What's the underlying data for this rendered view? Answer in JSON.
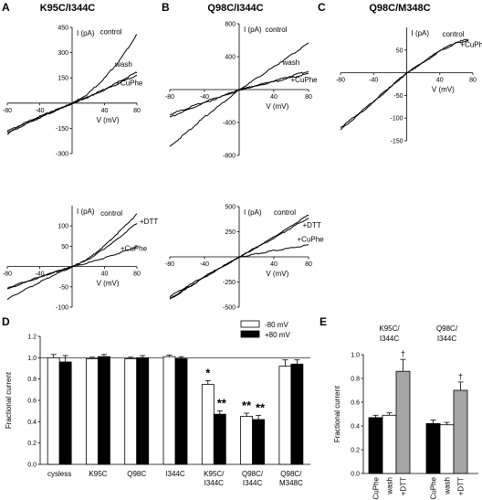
{
  "chart_data": [
    {
      "panel": "A",
      "title": "K95C/I344C",
      "type": "line",
      "xlabel": "V (mV)",
      "ylabel": "I (pA)",
      "xlim": [
        -80,
        80
      ],
      "ylim": [
        -300,
        450
      ],
      "xticks": [
        -80,
        -40,
        40,
        80
      ],
      "yticks": [
        -300,
        -150,
        150,
        300,
        450
      ],
      "series": [
        {
          "name": "control",
          "x": [
            -80,
            -60,
            -40,
            -20,
            0,
            20,
            40,
            60,
            80
          ],
          "y": [
            -165,
            -120,
            -78,
            -38,
            0,
            60,
            150,
            265,
            410
          ]
        },
        {
          "name": "wash",
          "x": [
            -80,
            -60,
            -40,
            -20,
            0,
            20,
            40,
            60,
            80
          ],
          "y": [
            -172,
            -125,
            -80,
            -40,
            0,
            40,
            85,
            135,
            185
          ]
        },
        {
          "name": "+CuPhe",
          "x": [
            -80,
            -60,
            -40,
            -20,
            0,
            20,
            40,
            60,
            80
          ],
          "y": [
            -180,
            -130,
            -84,
            -42,
            0,
            38,
            80,
            125,
            170
          ]
        }
      ]
    },
    {
      "panel": "B",
      "title": "Q98C/I344C",
      "type": "line",
      "xlabel": "V (mV)",
      "ylabel": "I (pA)",
      "xlim": [
        -80,
        80
      ],
      "ylim": [
        -800,
        800
      ],
      "xticks": [
        -80,
        -40,
        40,
        80
      ],
      "yticks": [
        -800,
        -400,
        400,
        800
      ],
      "series": [
        {
          "name": "control",
          "x": [
            -80,
            -40,
            0,
            40,
            80
          ],
          "y": [
            -690,
            -330,
            0,
            280,
            570
          ]
        },
        {
          "name": "wash",
          "x": [
            -80,
            -40,
            0,
            40,
            80
          ],
          "y": [
            -300,
            -145,
            0,
            110,
            230
          ]
        },
        {
          "name": "+CuPhe",
          "x": [
            -80,
            -40,
            0,
            40,
            80
          ],
          "y": [
            -330,
            -160,
            0,
            100,
            200
          ]
        }
      ]
    },
    {
      "panel": "C",
      "title": "Q98C/M348C",
      "type": "line",
      "xlabel": "V (mV)",
      "ylabel": "I (pA)",
      "xlim": [
        -80,
        80
      ],
      "ylim": [
        -150,
        100
      ],
      "xticks": [
        -80,
        -40,
        40,
        80
      ],
      "yticks": [
        -150,
        -100,
        -50,
        50
      ],
      "series": [
        {
          "name": "control",
          "x": [
            -80,
            -60,
            -40,
            -20,
            0,
            20,
            40,
            60,
            75
          ],
          "y": [
            -120,
            -92,
            -62,
            -30,
            0,
            25,
            50,
            68,
            75
          ]
        },
        {
          "name": "+CuPhe",
          "x": [
            -80,
            -60,
            -40,
            -20,
            0,
            20,
            40,
            60,
            75
          ],
          "y": [
            -125,
            -95,
            -64,
            -32,
            0,
            23,
            48,
            66,
            72
          ]
        }
      ]
    },
    {
      "panel": "A",
      "title": "",
      "type": "line",
      "xlabel": "V (mV)",
      "ylabel": "I (pA)",
      "xlim": [
        -80,
        80
      ],
      "ylim": [
        -100,
        150
      ],
      "xticks": [
        -80,
        -40,
        40,
        80
      ],
      "yticks": [
        -100,
        -50,
        50,
        100
      ],
      "series": [
        {
          "name": "control",
          "x": [
            -80,
            -60,
            -40,
            -20,
            0,
            20,
            40,
            60,
            80
          ],
          "y": [
            -55,
            -40,
            -26,
            -12,
            0,
            20,
            52,
            90,
            130
          ]
        },
        {
          "name": "+DTT",
          "x": [
            -80,
            -60,
            -40,
            -20,
            0,
            20,
            40,
            60,
            80
          ],
          "y": [
            -52,
            -38,
            -25,
            -12,
            0,
            18,
            45,
            75,
            108
          ]
        },
        {
          "name": "+CuPhe",
          "x": [
            -80,
            -60,
            -40,
            -20,
            0,
            20,
            40,
            60,
            80
          ],
          "y": [
            -80,
            -58,
            -38,
            -18,
            0,
            10,
            22,
            35,
            50
          ]
        }
      ]
    },
    {
      "panel": "B",
      "title": "",
      "type": "line",
      "xlabel": "V (mV)",
      "ylabel": "I (pA)",
      "xlim": [
        -80,
        80
      ],
      "ylim": [
        -500,
        500
      ],
      "xticks": [
        -80,
        -40,
        40,
        80
      ],
      "yticks": [
        -500,
        -250,
        250,
        500
      ],
      "series": [
        {
          "name": "control",
          "x": [
            -80,
            -40,
            0,
            40,
            80
          ],
          "y": [
            -410,
            -200,
            0,
            200,
            420
          ]
        },
        {
          "name": "+DTT",
          "x": [
            -80,
            -40,
            0,
            40,
            80
          ],
          "y": [
            -390,
            -190,
            0,
            190,
            390
          ]
        },
        {
          "name": "+CuPhe",
          "x": [
            -80,
            -40,
            0,
            40,
            80
          ],
          "y": [
            -420,
            -200,
            0,
            65,
            120
          ]
        }
      ]
    },
    {
      "panel": "D",
      "title": "",
      "type": "bar",
      "xlabel": "",
      "ylabel": "Fractional current",
      "ylim": [
        0,
        1.2
      ],
      "yticks": [
        0,
        0.2,
        0.4,
        0.6,
        0.8,
        1.0,
        1.2
      ],
      "reference_line": 1.0,
      "legend": [
        "-80 mV",
        "+80 mV"
      ],
      "categories": [
        "cysless",
        "K95C",
        "Q98C",
        "I344C",
        "K95C/ I344C",
        "Q98C/ I344C",
        "Q98C/ M348C"
      ],
      "series": [
        {
          "name": "-80 mV",
          "color": "#ffffff",
          "values": [
            1.0,
            0.99,
            0.99,
            1.01,
            0.75,
            0.45,
            0.92
          ],
          "errors": [
            0.03,
            0.015,
            0.015,
            0.015,
            0.035,
            0.03,
            0.06
          ]
        },
        {
          "name": "+80 mV",
          "color": "#000000",
          "values": [
            0.96,
            1.01,
            1.0,
            0.99,
            0.47,
            0.42,
            0.94
          ],
          "errors": [
            0.06,
            0.02,
            0.02,
            0.02,
            0.03,
            0.04,
            0.04
          ]
        }
      ],
      "significance": [
        "",
        "",
        "",
        "",
        "*|**",
        "**|**",
        ""
      ]
    },
    {
      "panel": "E",
      "title": "",
      "type": "bar",
      "ylabel": "Fractional current",
      "ylim": [
        0,
        1.0
      ],
      "yticks": [
        0,
        0.2,
        0.4,
        0.6,
        0.8,
        1.0
      ],
      "groups": [
        {
          "label": "K95C/ I344C",
          "categories": [
            "CuPhe",
            "wash",
            "+DTT"
          ],
          "values": [
            0.47,
            0.49,
            0.86
          ],
          "errors": [
            0.02,
            0.02,
            0.1
          ],
          "colors": [
            "#000000",
            "#ffffff",
            "#a6a6a6"
          ],
          "marks": [
            "",
            "",
            "†"
          ]
        },
        {
          "label": "Q98C/ I344C",
          "categories": [
            "CuPhe",
            "wash",
            "+DTT"
          ],
          "values": [
            0.42,
            0.41,
            0.7
          ],
          "errors": [
            0.03,
            0.02,
            0.07
          ],
          "colors": [
            "#000000",
            "#ffffff",
            "#a6a6a6"
          ],
          "marks": [
            "",
            "",
            "†"
          ]
        }
      ]
    }
  ]
}
